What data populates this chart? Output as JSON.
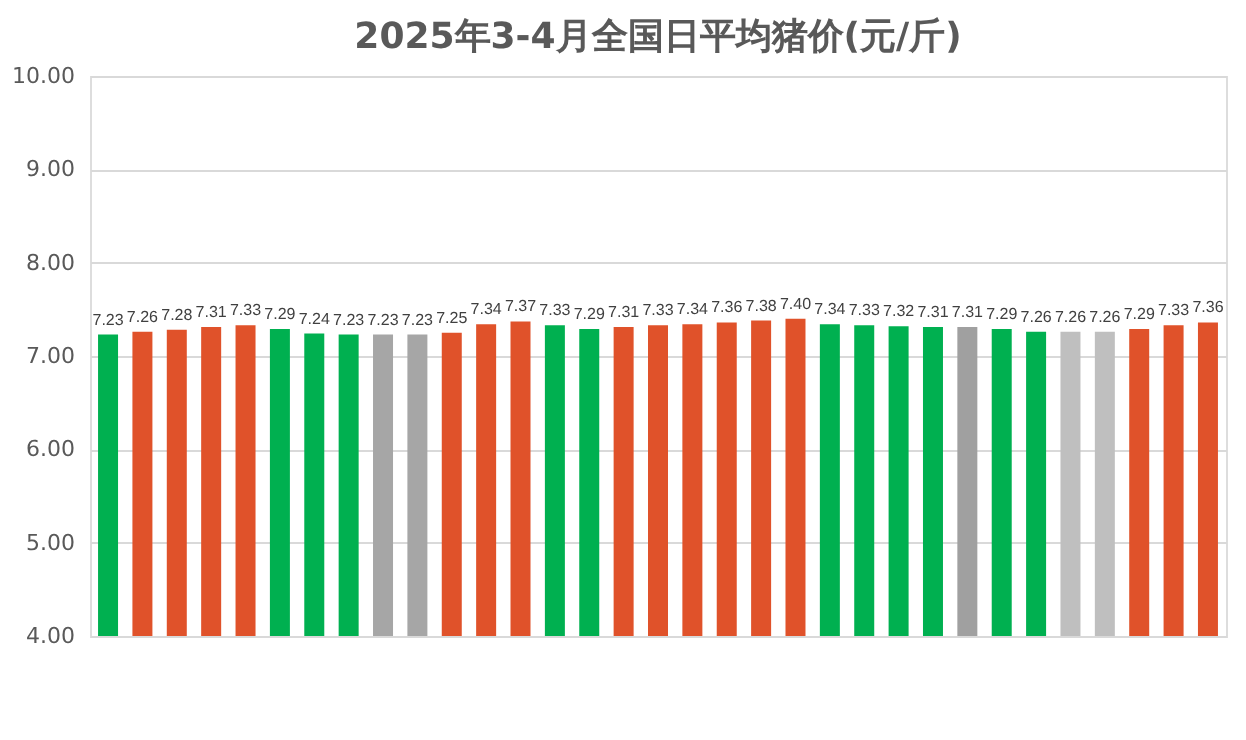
{
  "chart_data": {
    "type": "bar",
    "title": "2025年3-4月全国日平均猪价(元/斤)",
    "categories": [
      null,
      null,
      null,
      null,
      null,
      null,
      null,
      null,
      null,
      null,
      null,
      null,
      null,
      null,
      null,
      null,
      null,
      null,
      null,
      null,
      null,
      null,
      null,
      null,
      null,
      null,
      null,
      null,
      null,
      null,
      null,
      null,
      null
    ],
    "values": [
      7.23,
      7.26,
      7.28,
      7.31,
      7.33,
      7.29,
      7.24,
      7.23,
      7.23,
      7.23,
      7.25,
      7.34,
      7.37,
      7.33,
      7.29,
      7.31,
      7.33,
      7.34,
      7.36,
      7.38,
      7.4,
      7.34,
      7.33,
      7.32,
      7.31,
      7.31,
      7.29,
      7.26,
      7.26,
      7.26,
      7.29,
      7.33,
      7.36
    ],
    "colors": [
      "#00b050",
      "#e0522a",
      "#e0522a",
      "#e0522a",
      "#e0522a",
      "#00b050",
      "#00b050",
      "#00b050",
      "#a6a6a6",
      "#a6a6a6",
      "#e0522a",
      "#e0522a",
      "#e0522a",
      "#00b050",
      "#00b050",
      "#e0522a",
      "#e0522a",
      "#e0522a",
      "#e0522a",
      "#e0522a",
      "#e0522a",
      "#00b050",
      "#00b050",
      "#00b050",
      "#00b050",
      "#a0a0a0",
      "#00b050",
      "#00b050",
      "#bfbfbf",
      "#bfbfbf",
      "#e0522a",
      "#e0522a",
      "#e0522a"
    ],
    "ylim": [
      4.0,
      10.0
    ],
    "yticks": [
      {
        "value": 4,
        "label": "4.00"
      },
      {
        "value": 5,
        "label": "5.00"
      },
      {
        "value": 6,
        "label": "6.00"
      },
      {
        "value": 7,
        "label": "7.00"
      },
      {
        "value": 8,
        "label": "8.00"
      },
      {
        "value": 9,
        "label": "9.00"
      },
      {
        "value": 10,
        "label": "10.00"
      }
    ],
    "value_labels": [
      "7.23",
      "7.26",
      "7.28",
      "7.31",
      "7.33",
      "7.29",
      "7.24",
      "7.23",
      "7.23",
      "7.23",
      "7.25",
      "7.34",
      "7.37",
      "7.33",
      "7.29",
      "7.31",
      "7.33",
      "7.34",
      "7.36",
      "7.38",
      "7.40",
      "7.34",
      "7.33",
      "7.32",
      "7.31",
      "7.31",
      "7.29",
      "7.26",
      "7.26",
      "7.26",
      "7.29",
      "7.33",
      "7.36"
    ],
    "grid": "y"
  }
}
